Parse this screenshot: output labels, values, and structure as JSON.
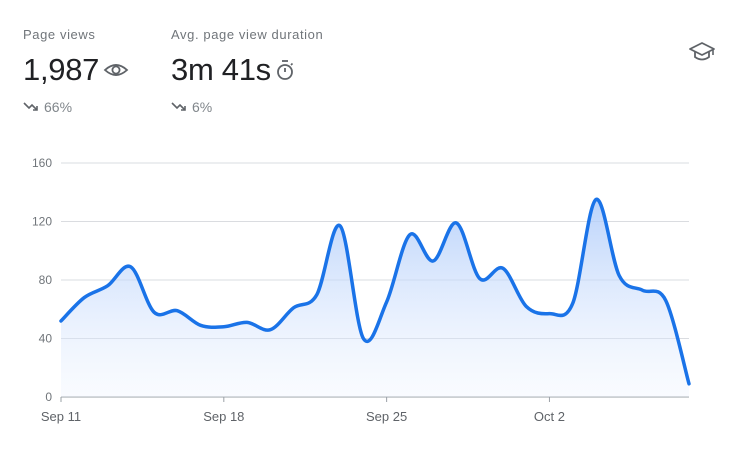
{
  "stats": [
    {
      "label": "Page views",
      "value": "1,987",
      "icon": "eye-icon",
      "change": "66%",
      "trend": "down"
    },
    {
      "label": "Avg. page view duration",
      "value": "3m 41s",
      "icon": "timer-icon",
      "change": "6%",
      "trend": "down"
    }
  ],
  "header_icon": "graduation-cap-icon",
  "colors": {
    "line": "#1a73e8",
    "fill_top": "#aecbfa",
    "grid": "#dadce0",
    "text": "#202124",
    "muted": "#70757a"
  },
  "chart_data": {
    "type": "area",
    "title": "",
    "xlabel": "",
    "ylabel": "",
    "ylim": [
      0,
      160
    ],
    "yticks": [
      0,
      40,
      80,
      120,
      160
    ],
    "xtick_labels": [
      "Sep 11",
      "Sep 18",
      "Sep 25",
      "Oct 2"
    ],
    "grid": true,
    "legend": "none",
    "series": [
      {
        "x": [
          "Sep 11",
          "Sep 12",
          "Sep 13",
          "Sep 14",
          "Sep 15",
          "Sep 16",
          "Sep 17",
          "Sep 18",
          "Sep 19",
          "Sep 20",
          "Sep 21",
          "Sep 22",
          "Sep 23",
          "Sep 24",
          "Sep 25",
          "Sep 26",
          "Sep 27",
          "Sep 28",
          "Sep 29",
          "Sep 30",
          "Oct 1",
          "Oct 2",
          "Oct 3",
          "Oct 4",
          "Oct 5",
          "Oct 6",
          "Oct 7",
          "Oct 8"
        ],
        "values": [
          52,
          68,
          76,
          89,
          58,
          59,
          49,
          48,
          51,
          46,
          61,
          70,
          117,
          40,
          65,
          111,
          93,
          119,
          81,
          88,
          62,
          57,
          64,
          135,
          83,
          73,
          66,
          9
        ]
      }
    ]
  }
}
